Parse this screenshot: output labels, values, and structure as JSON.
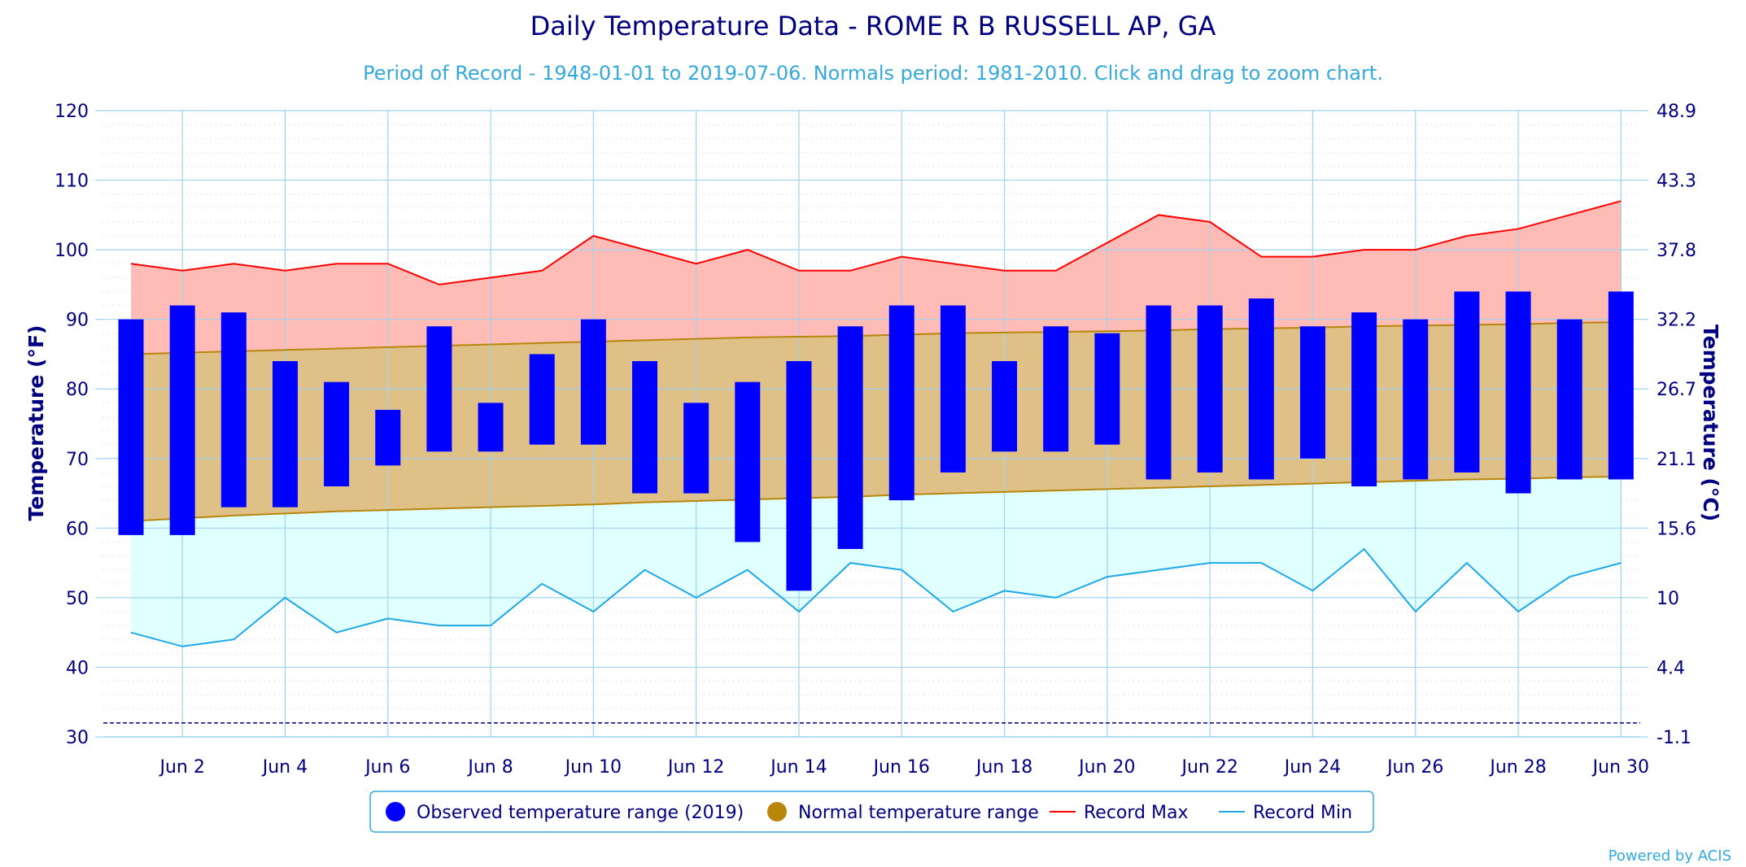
{
  "chart_data": {
    "type": "bar",
    "title": "Daily Temperature Data - ROME R B RUSSELL AP, GA",
    "subtitle": "Period of Record - 1948-01-01 to 2019-07-06. Normals period: 1981-2010. Click and drag to zoom chart.",
    "ylabel": "Temperature (°F)",
    "ylabel_right": "Temperature (°C)",
    "ylim": [
      30,
      120
    ],
    "yticks": [
      30,
      40,
      50,
      60,
      70,
      80,
      90,
      100,
      110,
      120
    ],
    "yticks_right": [
      "-1.1",
      "4.4",
      "10",
      "15.6",
      "21.1",
      "26.7",
      "32.2",
      "37.8",
      "43.3",
      "48.9"
    ],
    "x_days": [
      1,
      2,
      3,
      4,
      5,
      6,
      7,
      8,
      9,
      10,
      11,
      12,
      13,
      14,
      15,
      16,
      17,
      18,
      19,
      20,
      21,
      22,
      23,
      24,
      25,
      26,
      27,
      28,
      29,
      30
    ],
    "xtick_labels": [
      "Jun 2",
      "Jun 4",
      "Jun 6",
      "Jun 8",
      "Jun 10",
      "Jun 12",
      "Jun 14",
      "Jun 16",
      "Jun 18",
      "Jun 20",
      "Jun 22",
      "Jun 24",
      "Jun 26",
      "Jun 28",
      "Jun 30"
    ],
    "freezing_line": 32,
    "grid": true,
    "legend_position": "bottom",
    "series": [
      {
        "name": "Observed temperature range (2019)",
        "color": "#0000ff",
        "low": [
          59,
          59,
          63,
          63,
          66,
          69,
          71,
          71,
          72,
          72,
          65,
          65,
          58,
          51,
          57,
          64,
          68,
          71,
          71,
          72,
          67,
          68,
          67,
          70,
          66,
          67,
          68,
          65,
          67,
          67
        ],
        "high": [
          90,
          92,
          91,
          84,
          81,
          77,
          89,
          78,
          85,
          90,
          84,
          78,
          81,
          84,
          89,
          92,
          92,
          84,
          89,
          88,
          92,
          92,
          93,
          89,
          91,
          90,
          94,
          94,
          90,
          94
        ]
      },
      {
        "name": "Normal temperature range",
        "color": "#b8860b",
        "low": [
          61,
          61.4,
          61.8,
          62.1,
          62.4,
          62.6,
          62.8,
          63.0,
          63.2,
          63.4,
          63.7,
          63.9,
          64.1,
          64.3,
          64.5,
          64.8,
          65.0,
          65.2,
          65.4,
          65.6,
          65.8,
          66.0,
          66.2,
          66.4,
          66.6,
          66.8,
          67.0,
          67.1,
          67.3,
          67.4
        ],
        "high": [
          85,
          85.2,
          85.4,
          85.6,
          85.8,
          86,
          86.2,
          86.4,
          86.6,
          86.8,
          87,
          87.2,
          87.4,
          87.5,
          87.6,
          87.8,
          88,
          88.1,
          88.2,
          88.3,
          88.4,
          88.6,
          88.7,
          88.8,
          89,
          89.1,
          89.2,
          89.3,
          89.5,
          89.6
        ]
      },
      {
        "name": "Record Max",
        "color": "#ff0000",
        "values": [
          98,
          97,
          98,
          97,
          98,
          98,
          95,
          96,
          97,
          102,
          100,
          98,
          100,
          97,
          97,
          99,
          98,
          97,
          97,
          101,
          105,
          104,
          99,
          99,
          100,
          100,
          102,
          103,
          105,
          107
        ]
      },
      {
        "name": "Record Min",
        "color": "#1ea8e8",
        "values": [
          45,
          43,
          44,
          50,
          45,
          47,
          46,
          46,
          52,
          48,
          54,
          50,
          54,
          48,
          55,
          54,
          48,
          51,
          50,
          53,
          54,
          55,
          55,
          51,
          57,
          48,
          55,
          48,
          53,
          55
        ]
      }
    ]
  },
  "credit": "Powered by ACIS"
}
